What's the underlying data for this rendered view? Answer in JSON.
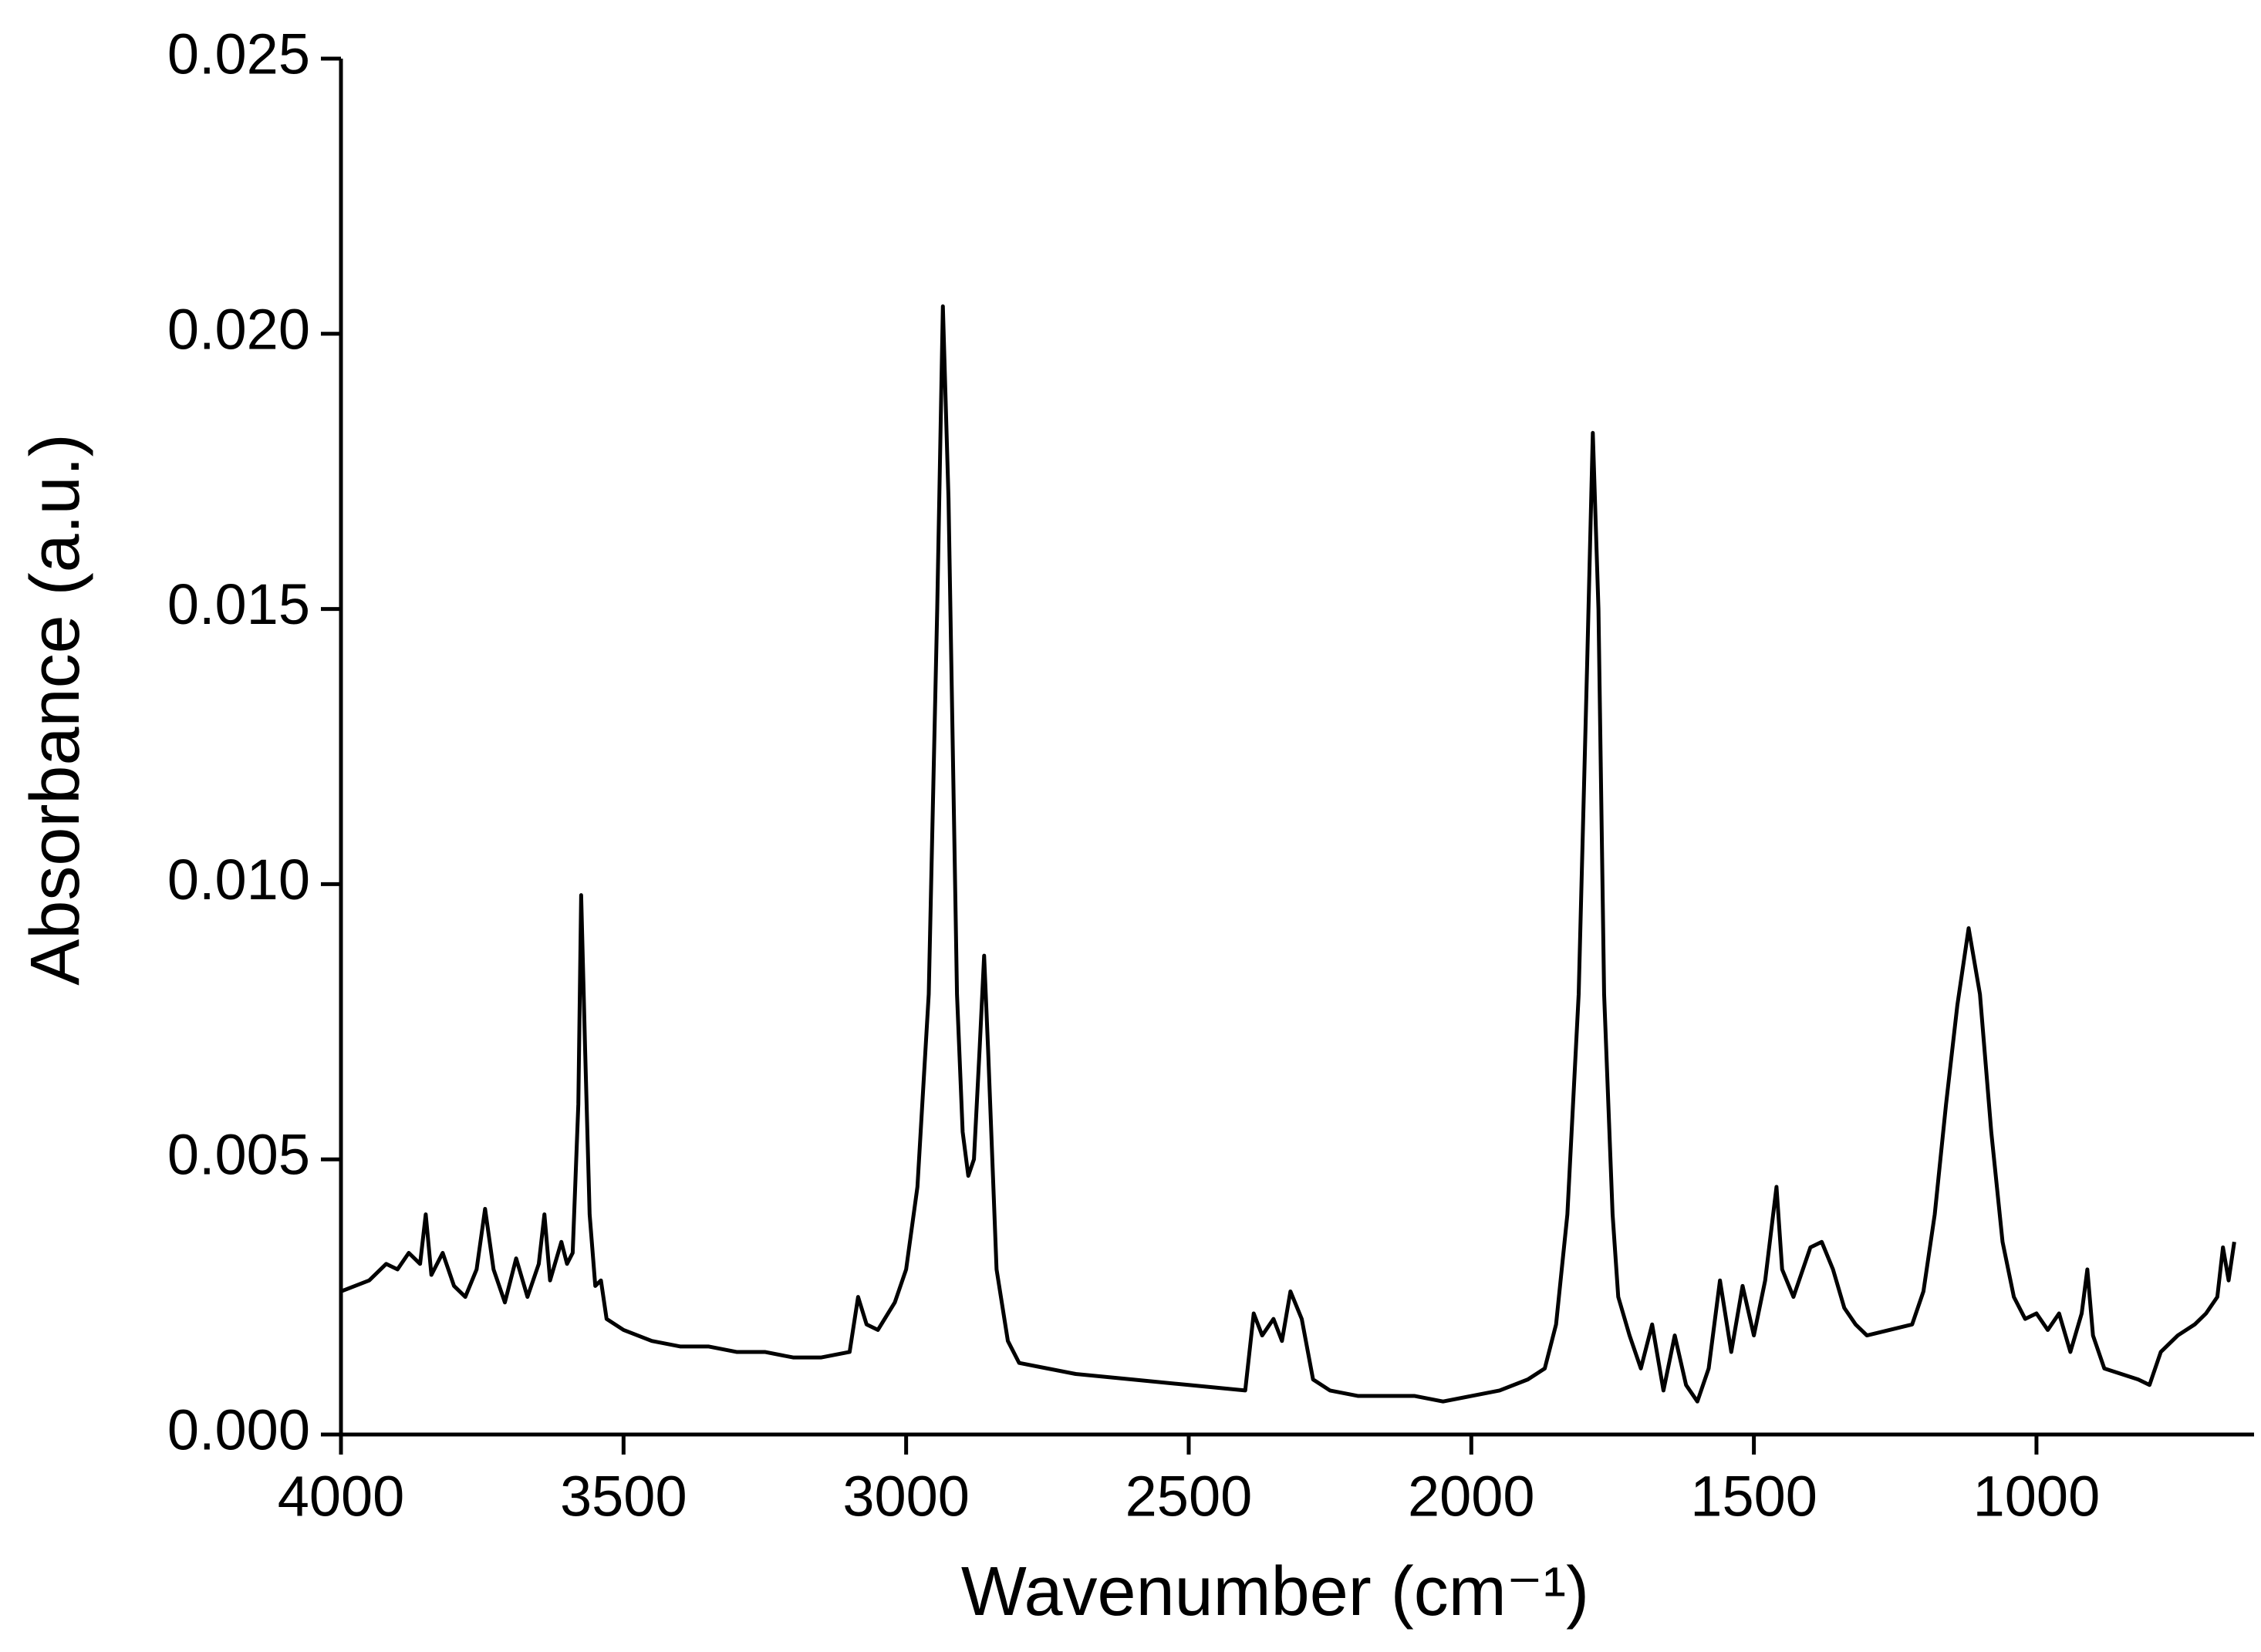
{
  "chart_data": {
    "type": "line",
    "xlabel": "Wavenumber (cm⁻¹)",
    "ylabel": "Absorbance (a.u.)",
    "xlim": [
      4000,
      615
    ],
    "ylim": [
      0,
      0.025
    ],
    "xticks": [
      4000,
      3500,
      3000,
      2500,
      2000,
      1500,
      1000
    ],
    "yticks": [
      {
        "value": 0,
        "label": "0.000"
      },
      {
        "value": 0.005,
        "label": "0.005"
      },
      {
        "value": 0.01,
        "label": "0.010"
      },
      {
        "value": 0.015,
        "label": "0.015"
      },
      {
        "value": 0.02,
        "label": "0.020"
      },
      {
        "value": 0.025,
        "label": "0.025"
      }
    ],
    "grid": false,
    "x": [
      4000,
      3950,
      3920,
      3900,
      3880,
      3860,
      3850,
      3840,
      3820,
      3800,
      3780,
      3760,
      3745,
      3730,
      3710,
      3690,
      3670,
      3650,
      3640,
      3630,
      3610,
      3600,
      3590,
      3580,
      3575,
      3568,
      3560,
      3550,
      3540,
      3530,
      3500,
      3450,
      3400,
      3350,
      3300,
      3250,
      3200,
      3150,
      3100,
      3085,
      3070,
      3050,
      3020,
      3000,
      2980,
      2960,
      2945,
      2935,
      2925,
      2910,
      2900,
      2890,
      2880,
      2870,
      2862,
      2855,
      2840,
      2820,
      2800,
      2750,
      2700,
      2600,
      2500,
      2400,
      2385,
      2370,
      2350,
      2335,
      2320,
      2300,
      2280,
      2250,
      2200,
      2100,
      2050,
      2000,
      1950,
      1900,
      1870,
      1850,
      1830,
      1810,
      1795,
      1785,
      1775,
      1765,
      1750,
      1740,
      1720,
      1700,
      1680,
      1660,
      1640,
      1620,
      1600,
      1580,
      1560,
      1540,
      1520,
      1500,
      1480,
      1460,
      1450,
      1430,
      1400,
      1380,
      1360,
      1340,
      1320,
      1300,
      1260,
      1220,
      1200,
      1180,
      1160,
      1140,
      1120,
      1100,
      1080,
      1060,
      1040,
      1020,
      1000,
      980,
      960,
      940,
      920,
      910,
      900,
      880,
      850,
      820,
      800,
      780,
      750,
      720,
      700,
      680,
      670,
      660,
      650
    ],
    "series": [
      {
        "color": "#000000",
        "values": [
          0.0026,
          0.0028,
          0.0031,
          0.003,
          0.0033,
          0.0031,
          0.004,
          0.0029,
          0.0033,
          0.0027,
          0.0025,
          0.003,
          0.0041,
          0.003,
          0.0024,
          0.0032,
          0.0025,
          0.0031,
          0.004,
          0.0028,
          0.0035,
          0.0031,
          0.0033,
          0.006,
          0.0098,
          0.007,
          0.004,
          0.0027,
          0.0028,
          0.0021,
          0.0019,
          0.0017,
          0.0016,
          0.0016,
          0.0015,
          0.0015,
          0.0014,
          0.0014,
          0.0015,
          0.0025,
          0.002,
          0.0019,
          0.0024,
          0.003,
          0.0045,
          0.008,
          0.015,
          0.0205,
          0.017,
          0.008,
          0.0055,
          0.0047,
          0.005,
          0.007,
          0.0087,
          0.007,
          0.003,
          0.0017,
          0.0013,
          0.0012,
          0.0011,
          0.001,
          0.0009,
          0.0008,
          0.0022,
          0.0018,
          0.0021,
          0.0017,
          0.0026,
          0.0021,
          0.001,
          0.0008,
          0.0007,
          0.0007,
          0.0006,
          0.0007,
          0.0008,
          0.001,
          0.0012,
          0.002,
          0.004,
          0.008,
          0.014,
          0.0182,
          0.015,
          0.008,
          0.004,
          0.0025,
          0.0018,
          0.0012,
          0.002,
          0.0008,
          0.0018,
          0.0009,
          0.0006,
          0.0012,
          0.0028,
          0.0015,
          0.0027,
          0.0018,
          0.0028,
          0.0045,
          0.003,
          0.0025,
          0.0034,
          0.0035,
          0.003,
          0.0023,
          0.002,
          0.0018,
          0.0019,
          0.002,
          0.0026,
          0.004,
          0.006,
          0.0078,
          0.0092,
          0.008,
          0.0055,
          0.0035,
          0.0025,
          0.0021,
          0.0022,
          0.0019,
          0.0022,
          0.0015,
          0.0022,
          0.003,
          0.0018,
          0.0012,
          0.0011,
          0.001,
          0.0009,
          0.0015,
          0.0018,
          0.002,
          0.0022,
          0.0025,
          0.0034,
          0.0028,
          0.0035
        ]
      }
    ]
  }
}
